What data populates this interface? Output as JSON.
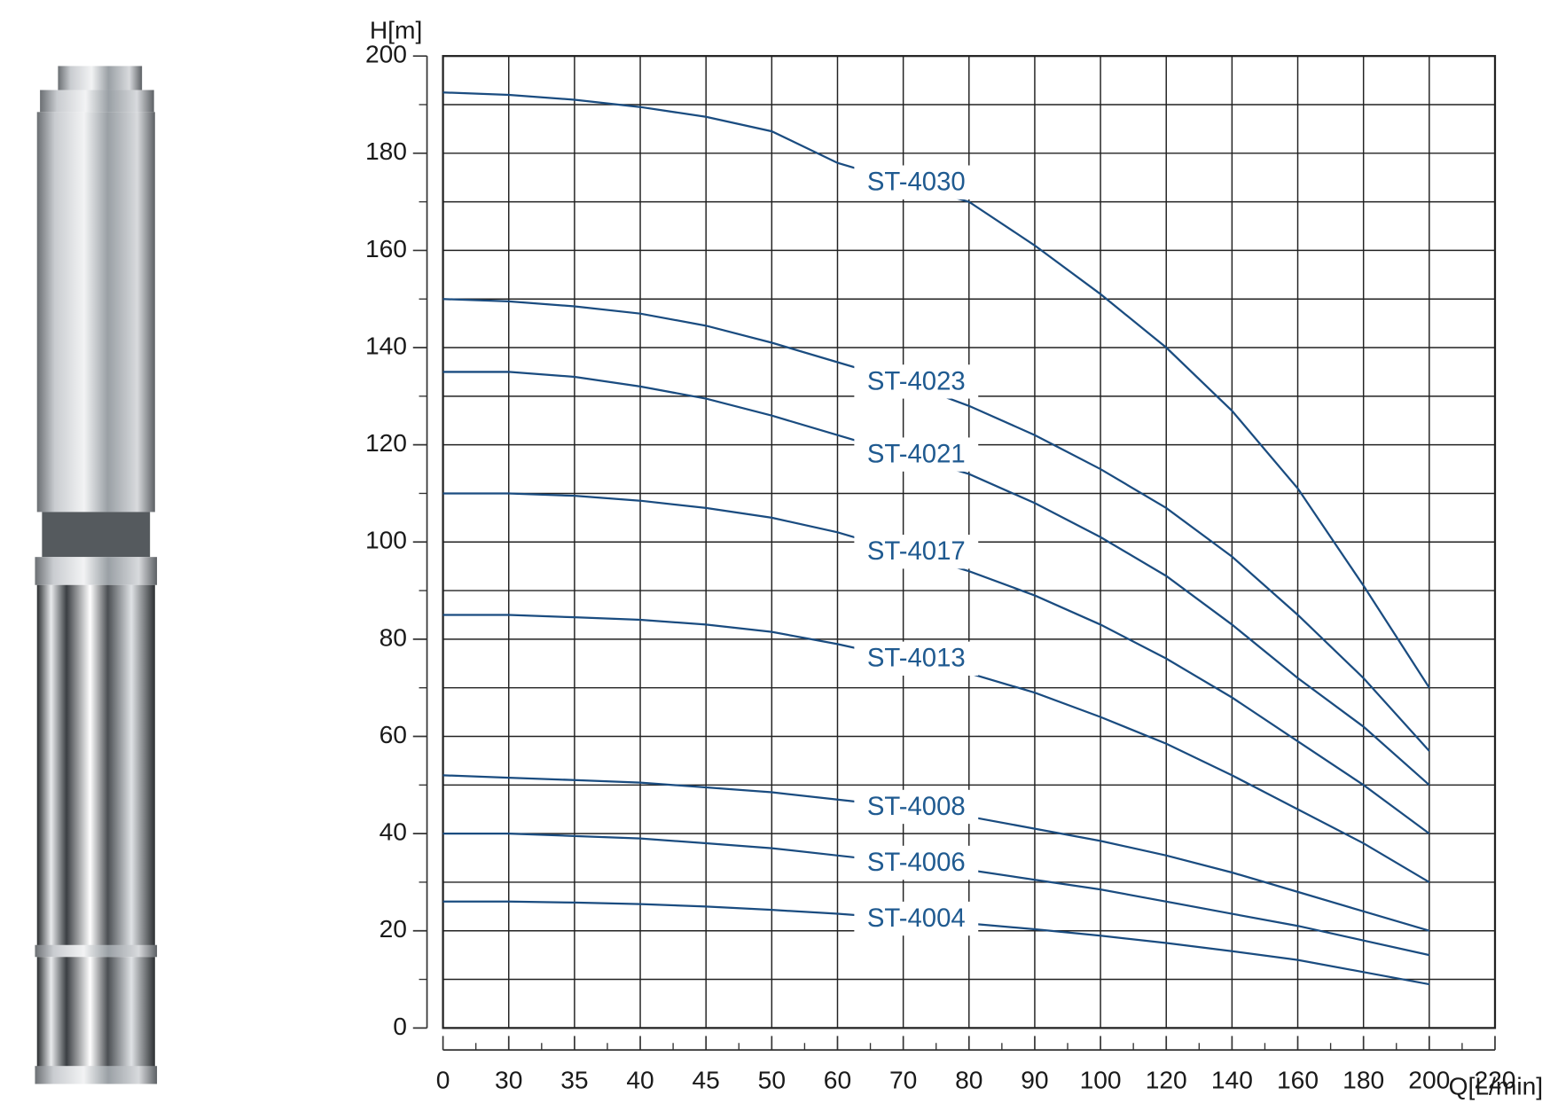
{
  "chart_data": {
    "type": "line",
    "y_label": "H[m]",
    "x_label": "Q[L/min]",
    "categories": [
      "0",
      "30",
      "35",
      "40",
      "45",
      "50",
      "60",
      "70",
      "80",
      "90",
      "100",
      "120",
      "140",
      "160",
      "180",
      "200",
      "220"
    ],
    "ylim": [
      0,
      200
    ],
    "yticks": [
      0,
      20,
      40,
      60,
      80,
      100,
      120,
      140,
      160,
      180,
      200
    ],
    "y_minor_ticks": [
      10,
      30,
      50,
      70,
      90,
      110,
      130,
      150,
      170,
      190
    ],
    "grid": true,
    "color": "#1a4c80",
    "series": [
      {
        "name": "ST-4030",
        "values": [
          192.5,
          192,
          191,
          189.5,
          187.5,
          184.5,
          178,
          174,
          170,
          161,
          151,
          140,
          127,
          111,
          91,
          70,
          null
        ]
      },
      {
        "name": "ST-4023",
        "values": [
          150,
          149.5,
          148.5,
          147,
          144.5,
          141,
          137,
          133,
          128,
          122,
          115,
          107,
          97,
          85,
          72,
          57,
          null
        ]
      },
      {
        "name": "ST-4021",
        "values": [
          135,
          135,
          134,
          132,
          129.5,
          126,
          122,
          118,
          114,
          108,
          101,
          93,
          83,
          72,
          62,
          50,
          null
        ]
      },
      {
        "name": "ST-4017",
        "values": [
          110,
          110,
          109.5,
          108.5,
          107,
          105,
          102,
          98,
          94,
          89,
          83,
          76,
          68,
          59,
          50,
          40,
          null
        ]
      },
      {
        "name": "ST-4013",
        "values": [
          85,
          85,
          84.5,
          84,
          83,
          81.5,
          79,
          76,
          73,
          69,
          64,
          58.5,
          52,
          45,
          38,
          30,
          null
        ]
      },
      {
        "name": "ST-4008",
        "values": [
          52,
          51.5,
          51,
          50.5,
          49.5,
          48.5,
          47,
          45.5,
          43.5,
          41,
          38.5,
          35.5,
          32,
          28,
          24,
          20,
          null
        ]
      },
      {
        "name": "ST-4006",
        "values": [
          40,
          40,
          39.5,
          39,
          38,
          37,
          35.5,
          34,
          32.5,
          30.5,
          28.5,
          26,
          23.5,
          21,
          18,
          15,
          null
        ]
      },
      {
        "name": "ST-4004",
        "values": [
          26,
          26,
          25.8,
          25.5,
          25,
          24.3,
          23.5,
          22.5,
          21.5,
          20.3,
          19,
          17.5,
          15.8,
          14,
          11.5,
          9,
          null
        ]
      }
    ]
  }
}
